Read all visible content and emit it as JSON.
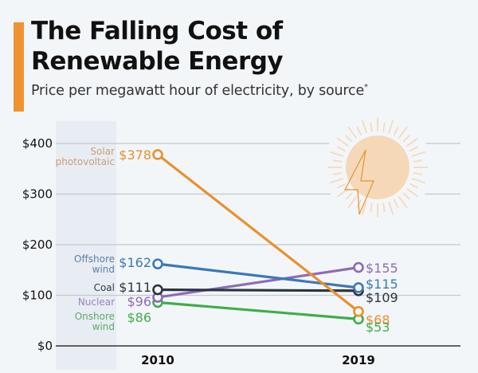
{
  "header": {
    "title_line1": "The Falling Cost of",
    "title_line2": "Renewable Energy",
    "subtitle": "Price per megawatt hour of electricity, by source",
    "subtitle_mark": "*",
    "accent_color": "#ee9331"
  },
  "decoration": {
    "icon": "sun-lightning-icon"
  },
  "chart_data": {
    "type": "line",
    "title": "The Falling Cost of Renewable Energy",
    "subtitle": "Price per megawatt hour of electricity, by source*",
    "xlabel": "",
    "ylabel": "",
    "x": [
      "2010",
      "2019"
    ],
    "ylim": [
      0,
      400
    ],
    "yticks": [
      0,
      100,
      200,
      300,
      400
    ],
    "ytick_labels": [
      "$0",
      "$100",
      "$200",
      "$300",
      "$400"
    ],
    "grid": true,
    "legend": "inline-left",
    "highlighted_category": "2010",
    "series": [
      {
        "name": "Solar photovoltaic",
        "label_lines": [
          "Solar",
          "photovoltaic"
        ],
        "color": "#e8912e",
        "label_color": "#c9a07a",
        "values": [
          378,
          68
        ],
        "value_labels": [
          "$378",
          "$68"
        ]
      },
      {
        "name": "Offshore wind",
        "label_lines": [
          "Offshore",
          "wind"
        ],
        "color": "#3b78b8",
        "label_color": "#5b82a8",
        "values": [
          162,
          115
        ],
        "value_labels": [
          "$162",
          "$115"
        ]
      },
      {
        "name": "Coal",
        "label_lines": [
          "Coal"
        ],
        "color": "#2b3440",
        "label_color": "#333a44",
        "values": [
          111,
          109
        ],
        "value_labels": [
          "$111",
          "$109"
        ]
      },
      {
        "name": "Nuclear",
        "label_lines": [
          "Nuclear"
        ],
        "color": "#8e6bb8",
        "label_color": "#9a83bb",
        "values": [
          96,
          155
        ],
        "value_labels": [
          "$96",
          "$155"
        ]
      },
      {
        "name": "Onshore wind",
        "label_lines": [
          "Onshore",
          "wind"
        ],
        "color": "#3fae49",
        "label_color": "#5cad64",
        "values": [
          86,
          53
        ],
        "value_labels": [
          "$86",
          "$53"
        ]
      }
    ]
  }
}
